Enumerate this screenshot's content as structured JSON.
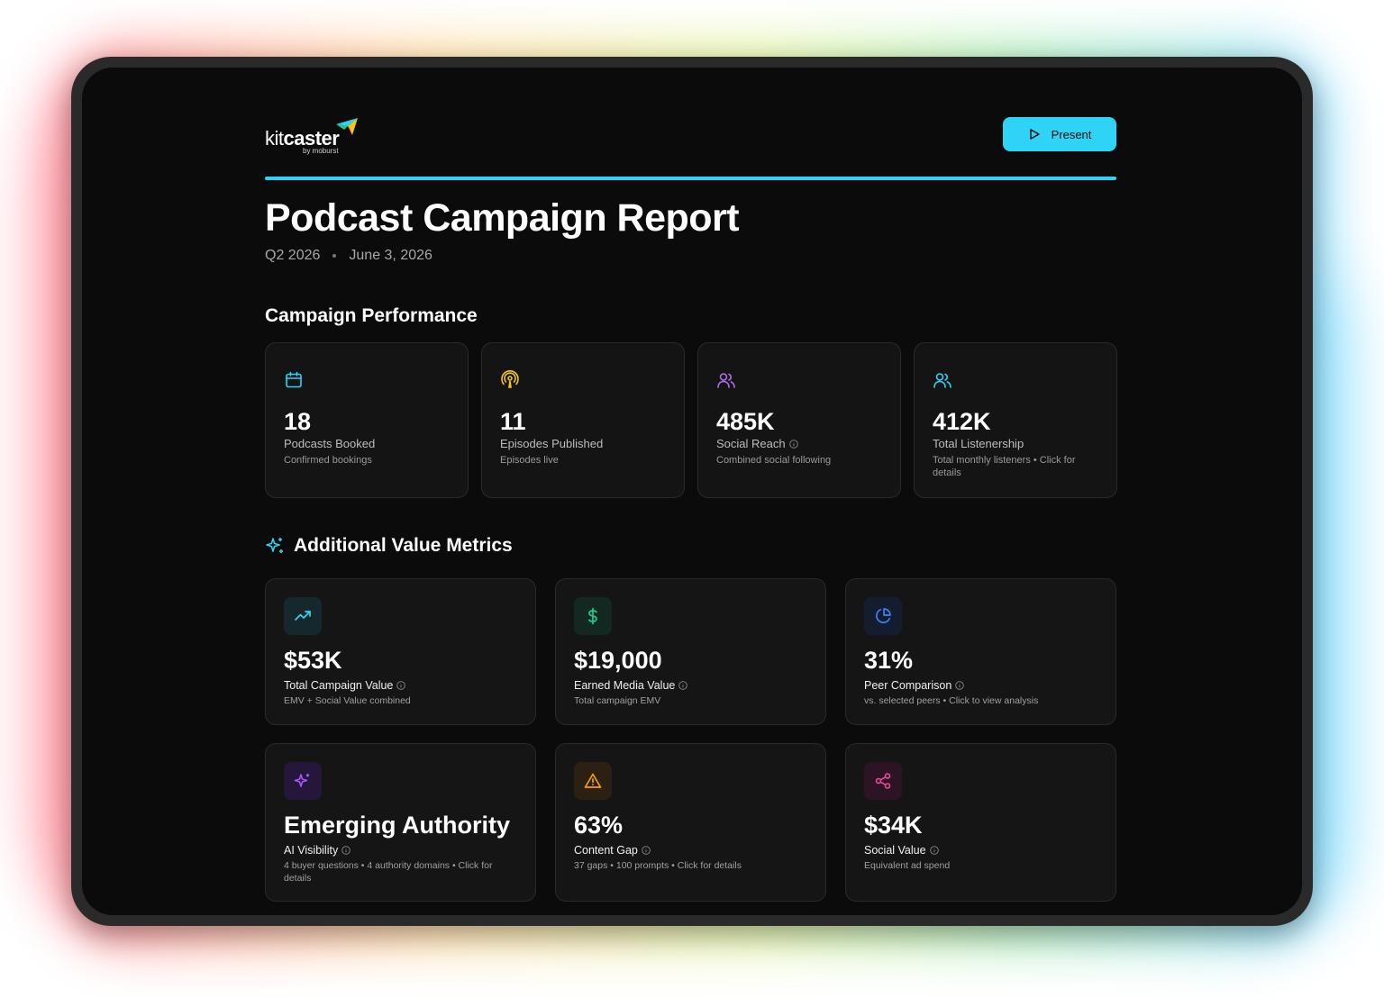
{
  "brand": {
    "name_light": "kit",
    "name_bold": "caster",
    "byline": "by moburst"
  },
  "header": {
    "present_label": "Present",
    "accent_color": "#2fd3f5"
  },
  "report": {
    "title": "Podcast Campaign Report",
    "period": "Q2 2026",
    "date": "June 3, 2026"
  },
  "campaign_performance": {
    "title": "Campaign Performance",
    "cards": [
      {
        "icon": "calendar-icon",
        "value": "18",
        "label": "Podcasts Booked",
        "desc": "Confirmed bookings",
        "color": "#2fd3f5"
      },
      {
        "icon": "podcast-icon",
        "value": "11",
        "label": "Episodes Published",
        "desc": "Episodes live",
        "color": "#f5c518"
      },
      {
        "icon": "users-icon",
        "value": "485K",
        "label": "Social Reach",
        "desc": "Combined social following",
        "color": "#b06cf0"
      },
      {
        "icon": "users-icon",
        "value": "412K",
        "label": "Total Listenership",
        "desc": "Total monthly listeners • Click for details",
        "color": "#2fd3f5"
      }
    ]
  },
  "additional_metrics": {
    "title": "Additional Value Metrics",
    "cards": [
      {
        "icon": "trending-up-icon",
        "value": "$53K",
        "label": "Total Campaign Value",
        "desc": "EMV + Social Value combined",
        "color": "#2fd3f5"
      },
      {
        "icon": "dollar-icon",
        "value": "$19,000",
        "label": "Earned Media Value",
        "desc": "Total campaign EMV",
        "color": "#22c98a"
      },
      {
        "icon": "pie-chart-icon",
        "value": "31%",
        "label": "Peer Comparison",
        "desc": "vs. selected peers • Click to view analysis",
        "color": "#3b82f6"
      },
      {
        "icon": "sparkles-icon",
        "value": "Emerging Authority",
        "label": "AI Visibility",
        "desc": "4 buyer questions • 4 authority domains • Click for details",
        "color": "#a855f7"
      },
      {
        "icon": "warning-icon",
        "value": "63%",
        "label": "Content Gap",
        "desc": "37 gaps • 100 prompts • Click for details",
        "color": "#f59e0b"
      },
      {
        "icon": "share-icon",
        "value": "$34K",
        "label": "Social Value",
        "desc": "Equivalent ad spend",
        "color": "#ec4899"
      }
    ]
  }
}
